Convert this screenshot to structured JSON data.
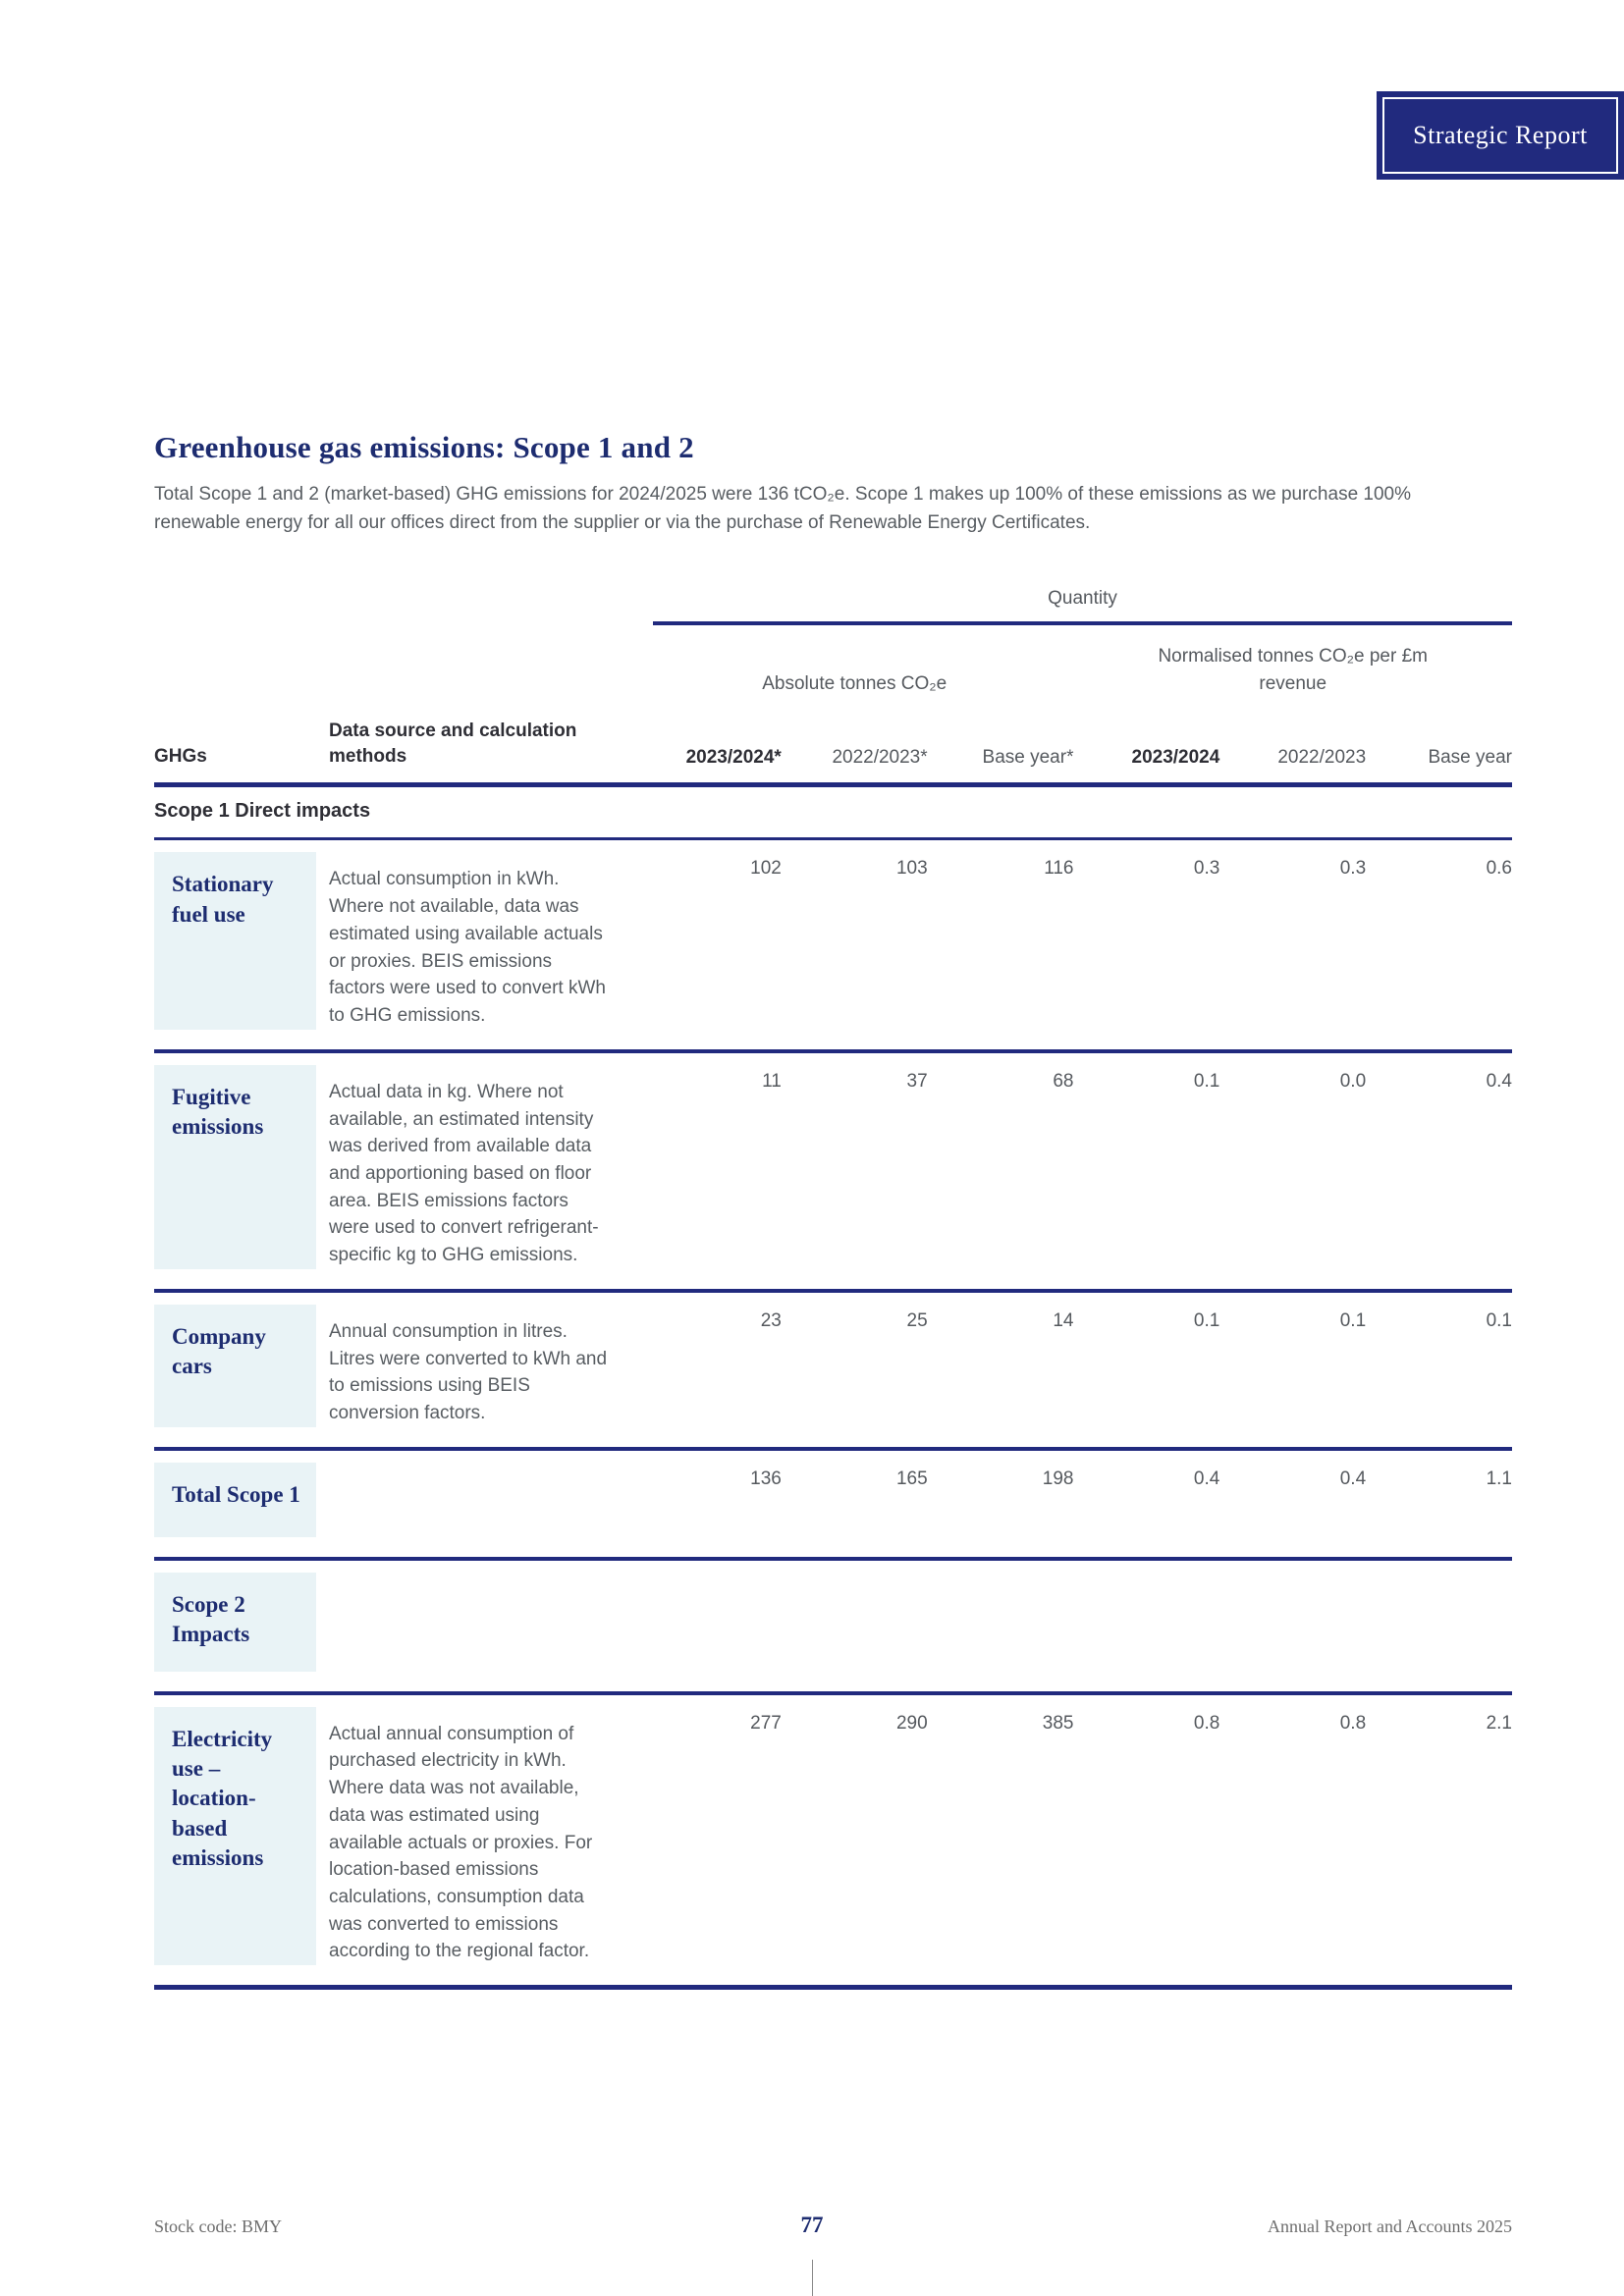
{
  "badge": {
    "label": "Strategic Report"
  },
  "heading": {
    "title": "Greenhouse gas emissions: Scope 1 and 2",
    "intro": "Total Scope 1 and 2 (market-based) GHG emissions for 2024/2025 were 136 tCO₂e. Scope 1 makes up 100% of these emissions as we purchase 100% renewable energy for all our offices direct from the supplier or via the purchase of Renewable Energy Certificates."
  },
  "table": {
    "quantity_label": "Quantity",
    "group_absolute": "Absolute tonnes CO₂e",
    "group_normalised": "Normalised tonnes CO₂e per £m revenue",
    "col_ghgs": "GHGs",
    "col_method": "Data source and calculation methods",
    "columns": [
      "2023/2024*",
      "2022/2023*",
      "Base year*",
      "2023/2024",
      "2022/2023",
      "Base year"
    ],
    "section_scope1": "Scope 1 Direct impacts",
    "rows": [
      {
        "ghg": "Stationary fuel use",
        "method": "Actual consumption in kWh. Where not available, data was estimated using available actuals or proxies. BEIS emissions factors were used to convert kWh to GHG emissions.",
        "values": [
          "102",
          "103",
          "116",
          "0.3",
          "0.3",
          "0.6"
        ]
      },
      {
        "ghg": "Fugitive emissions",
        "method": "Actual data in kg. Where not available, an estimated intensity was derived from available data and apportioning based on floor area. BEIS emissions factors were used to convert refrigerant-specific kg to GHG emissions.",
        "values": [
          "11",
          "37",
          "68",
          "0.1",
          "0.0",
          "0.4"
        ]
      },
      {
        "ghg": "Company cars",
        "method": "Annual consumption in litres. Litres were converted to kWh and to emissions using BEIS conversion factors.",
        "values": [
          "23",
          "25",
          "14",
          "0.1",
          "0.1",
          "0.1"
        ]
      },
      {
        "ghg": "Total Scope 1",
        "method": "",
        "values": [
          "136",
          "165",
          "198",
          "0.4",
          "0.4",
          "1.1"
        ]
      },
      {
        "ghg": "Scope 2 Impacts",
        "method": "",
        "values": [
          "",
          "",
          "",
          "",
          "",
          ""
        ]
      },
      {
        "ghg": "Electricity use – location-based emissions",
        "method": "Actual annual consumption of purchased electricity in kWh. Where data was not available, data was estimated using available actuals or proxies. For location-based emissions calculations, consumption data was converted to emissions according to the regional factor.",
        "values": [
          "277",
          "290",
          "385",
          "0.8",
          "0.8",
          "2.1"
        ]
      }
    ]
  },
  "footer": {
    "stock_code": "Stock code: BMY",
    "page_number": "77",
    "report_name": "Annual Report and Accounts 2025"
  }
}
